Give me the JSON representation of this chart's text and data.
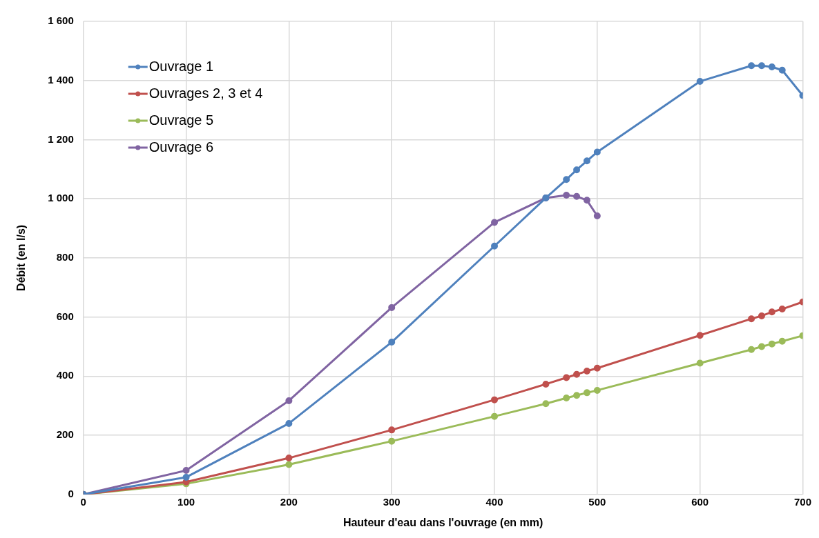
{
  "chart_data": {
    "type": "line",
    "xlabel": "Hauteur d'eau dans l'ouvrage (en mm)",
    "ylabel": "Débit (en l/s)",
    "xlim": [
      0,
      700
    ],
    "xticks": [
      0,
      100,
      200,
      300,
      400,
      500,
      600,
      700
    ],
    "ylim": [
      0,
      1600
    ],
    "yticks": [
      0,
      200,
      400,
      600,
      800,
      {
        "value": 1000,
        "label": "1 000"
      },
      {
        "value": 1200,
        "label": "1 200"
      },
      {
        "value": 1400,
        "label": "1 400"
      },
      {
        "value": 1600,
        "label": "1 600"
      }
    ],
    "x": [
      0,
      100,
      200,
      300,
      400,
      450,
      470,
      480,
      490,
      500,
      600,
      650,
      660,
      670,
      680,
      700
    ],
    "series": [
      {
        "name": "Ouvrage 1",
        "color": "#4f81bd",
        "values": [
          0,
          58,
          240,
          515,
          840,
          1003,
          1065,
          1098,
          1128,
          1158,
          1397,
          1450,
          1450,
          1446,
          1435,
          1349
        ]
      },
      {
        "name": "Ouvrages 2, 3 et 4",
        "color": "#c0504d",
        "values": [
          0,
          42,
          123,
          218,
          320,
          373,
          395,
          406,
          417,
          427,
          538,
          594,
          604,
          617,
          627,
          651
        ]
      },
      {
        "name": "Ouvrage 5",
        "color": "#9bbb59",
        "values": [
          0,
          36,
          101,
          180,
          264,
          307,
          326,
          335,
          344,
          352,
          444,
          490,
          500,
          509,
          518,
          537
        ]
      },
      {
        "name": "Ouvrage 6",
        "color": "#8064a2",
        "x": [
          0,
          100,
          200,
          300,
          400,
          450,
          470,
          480,
          490,
          500
        ],
        "values": [
          0,
          81,
          317,
          632,
          920,
          1003,
          1012,
          1008,
          995,
          942
        ]
      }
    ],
    "grid": true,
    "legend": "top left",
    "marker": "circle",
    "line_style": "solid"
  }
}
